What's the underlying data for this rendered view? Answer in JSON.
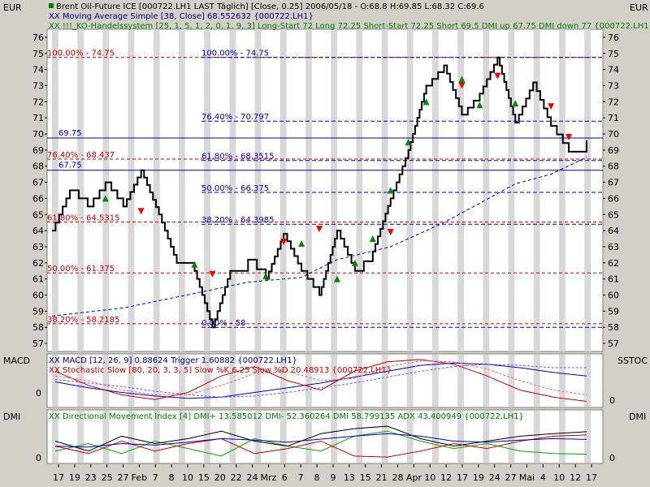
{
  "header": {
    "currency_left": "EUR",
    "currency_right": "EUR",
    "line1": "Brent Oil-Future  ICE [000722.LH1 LAST Täglich] [Close, 0.25] 2006/05/18 - O:68.8 H:69.85 L:68.32 C:69.6",
    "line2": "XX Moving Average Simple [38, Close] 68.552632 {000722.LH1}",
    "line3": "XX !!!_KO-Handelssystem [25, 1, 5, 1, 2, 0, 1, 9, 3] Long-Start 72 Long 72.25 Short-Start 72.25 Short 69.5 DMI up 67.75 DMI down 77 {000722.LH1}"
  },
  "indicators": {
    "macd_name": "MACD",
    "macd_line1": "XX MACD [12, 26, 9] 0.88624 Trigger 1.60882 {000722.LH1}",
    "macd_line2": "XX Stochastic Slow [80, 20, 3, 3, 5] Slow %K 6.25 Slow %D 20.48913 {000722.LH1}",
    "sstoc_name": "SSTOC",
    "macd_zero_left": "0",
    "sstoc_zero_right": "0",
    "dmi_name_left": "DMI",
    "dmi_name_right": "DMI",
    "dmi_line1": "XX Directional Movement Index [4] DMI+ 13.585012 DMI- 52.360264 DMI 58.799135 ADX 43.400949 {000722.LH1}",
    "dmi_zero_left": "0",
    "dmi_zero_right": "0"
  },
  "fib_labels_left": [
    {
      "text": "100.00% - 74.75",
      "y": 74.75
    },
    {
      "text": "76.40% - 68.437",
      "y": 68.437
    },
    {
      "text": "61.80% - 64.5315",
      "y": 64.5315
    },
    {
      "text": "50.00% - 61.375",
      "y": 61.375
    },
    {
      "text": "38.20% - 58.2185",
      "y": 58.2185
    }
  ],
  "fib_labels_mid": [
    {
      "text": "100.00% - 74.75",
      "y": 74.75
    },
    {
      "text": "76.40% - 70.797",
      "y": 70.797
    },
    {
      "text": "61.80% - 68.3515",
      "y": 68.3515
    },
    {
      "text": "50.00% - 66.375",
      "y": 66.375
    },
    {
      "text": "38.20% - 64.3985",
      "y": 64.3985
    },
    {
      "text": "0.00% - 58",
      "y": 58
    }
  ],
  "level_labels": [
    {
      "text": "69.75",
      "y": 69.75
    },
    {
      "text": "67.75",
      "y": 67.75
    }
  ],
  "x_labels": [
    "17",
    "19",
    "23",
    "25",
    "27",
    "Feb",
    "7",
    "8",
    "10",
    "15",
    "20",
    "22",
    "24",
    "Mrz",
    "6",
    "7",
    "8",
    "9",
    "13",
    "15",
    "21",
    "28",
    "Apr",
    "10",
    "12",
    "17",
    "19",
    "24",
    "27",
    "Mai",
    "4",
    "10",
    "12",
    "17"
  ],
  "colors": {
    "background": "#ffffff",
    "stripe": "#d8d8d8",
    "panel_bg": "#d4d0c8",
    "brick": "#000000",
    "support_blue": "#0000aa",
    "fib_red": "#cc0000",
    "ma_blue": "#0000cc",
    "up_green": "#008800",
    "down_red": "#ee0000",
    "header_text_blue": "#000080",
    "header_text_green": "#008000",
    "header_text_red": "#cc0000"
  },
  "chart_data": [
    {
      "type": "line",
      "title": "Brent Oil-Future  ICE [000722.LH1 LAST Täglich] [Close, 0.25] 2006/05/18",
      "ylabel": "EUR",
      "ylim": [
        56.5,
        76.5
      ],
      "yticks": [
        57,
        58,
        59,
        60,
        61,
        62,
        63,
        64,
        65,
        66,
        67,
        68,
        69,
        70,
        71,
        72,
        73,
        74,
        75,
        76
      ],
      "x_categories": [
        "17",
        "19",
        "23",
        "25",
        "27",
        "Feb",
        "7",
        "8",
        "10",
        "15",
        "20",
        "22",
        "24",
        "Mrz",
        "6",
        "7",
        "8",
        "9",
        "13",
        "15",
        "21",
        "28",
        "Apr",
        "10",
        "12",
        "17",
        "19",
        "24",
        "27",
        "Mai",
        "4",
        "10",
        "12",
        "17"
      ],
      "series": [
        {
          "name": "Brent Oil-Future",
          "kind": "renko-close",
          "points": [
            [
              0,
              64
            ],
            [
              1,
              66.5
            ],
            [
              2,
              65.5
            ],
            [
              3,
              67
            ],
            [
              4,
              65.5
            ],
            [
              5,
              67.75
            ],
            [
              6,
              65
            ],
            [
              7,
              62
            ],
            [
              8,
              61.5
            ],
            [
              9,
              58
            ],
            [
              10,
              61.5
            ],
            [
              11,
              62.2
            ],
            [
              12,
              61
            ],
            [
              13,
              63.8
            ],
            [
              14,
              61.5
            ],
            [
              15,
              60
            ],
            [
              16,
              64
            ],
            [
              17,
              61.5
            ],
            [
              18,
              62.7
            ],
            [
              19,
              66
            ],
            [
              20,
              69
            ],
            [
              21,
              73
            ],
            [
              22,
              74.25
            ],
            [
              23,
              71.2
            ],
            [
              24,
              72.5
            ],
            [
              25,
              74.75
            ],
            [
              26,
              70.7
            ],
            [
              27,
              73.2
            ],
            [
              28,
              70.5
            ],
            [
              29,
              68.9
            ],
            [
              30,
              69.6
            ]
          ]
        },
        {
          "name": "Moving Average Simple [38, Close]",
          "points": [
            [
              0,
              58.7
            ],
            [
              4,
              59.2
            ],
            [
              8,
              60.1
            ],
            [
              11,
              60.8
            ],
            [
              14,
              61.1
            ],
            [
              16,
              62.2
            ],
            [
              19,
              63.0
            ],
            [
              22,
              64.5
            ],
            [
              24,
              65.7
            ],
            [
              26,
              66.9
            ],
            [
              28,
              67.5
            ],
            [
              30,
              68.55
            ]
          ]
        }
      ],
      "fib_levels_left": [
        74.75,
        68.437,
        64.5315,
        61.375,
        58.2185
      ],
      "fib_levels_mid": [
        74.75,
        70.797,
        68.3515,
        66.375,
        64.3985,
        58
      ],
      "support_lines": [
        69.75,
        67.75
      ],
      "long_signals": [
        [
          3,
          66.0
        ],
        [
          8,
          61.9
        ],
        [
          12,
          61.2
        ],
        [
          14,
          63.2
        ],
        [
          16,
          61.0
        ],
        [
          17,
          62.0
        ],
        [
          18,
          63.5
        ],
        [
          19,
          66.5
        ],
        [
          20,
          69.5
        ],
        [
          21,
          72.0
        ],
        [
          23,
          73.4
        ],
        [
          24,
          71.8
        ],
        [
          26,
          71.9
        ]
      ],
      "short_signals": [
        [
          5,
          65.2
        ],
        [
          9,
          61.3
        ],
        [
          13,
          63.3
        ],
        [
          15,
          64.1
        ],
        [
          19,
          63.9
        ],
        [
          23,
          73.0
        ],
        [
          25,
          73.6
        ],
        [
          28,
          71.7
        ],
        [
          29,
          69.8
        ]
      ]
    },
    {
      "type": "line",
      "title": "MACD [12, 26, 9]",
      "series": [
        {
          "name": "MACD",
          "values": [
            0.4,
            -0.1,
            -0.5,
            -0.8,
            -1.0,
            -0.9,
            -0.5,
            -0.1,
            0.3,
            0.8,
            1.3,
            1.8,
            2.0,
            1.9,
            1.6,
            1.2,
            0.9
          ]
        },
        {
          "name": "Trigger",
          "values": [
            0.6,
            0.3,
            0.0,
            -0.4,
            -0.7,
            -0.9,
            -0.8,
            -0.5,
            -0.1,
            0.3,
            0.8,
            1.3,
            1.7,
            1.9,
            1.8,
            1.6,
            1.6
          ]
        },
        {
          "name": "Slow %K",
          "values": [
            70,
            40,
            20,
            10,
            25,
            60,
            80,
            50,
            30,
            70,
            90,
            95,
            85,
            60,
            30,
            15,
            6
          ]
        },
        {
          "name": "Slow %D",
          "values": [
            60,
            50,
            30,
            20,
            20,
            40,
            65,
            70,
            50,
            55,
            80,
            92,
            90,
            75,
            50,
            30,
            20
          ]
        }
      ]
    },
    {
      "type": "line",
      "title": "Directional Movement Index [4]",
      "series": [
        {
          "name": "DMI+",
          "values": [
            20,
            35,
            15,
            40,
            25,
            10,
            45,
            30,
            20,
            50,
            60,
            40,
            25,
            35,
            20,
            15,
            13.6
          ]
        },
        {
          "name": "DMI-",
          "values": [
            30,
            15,
            40,
            20,
            35,
            45,
            15,
            25,
            40,
            10,
            8,
            20,
            35,
            25,
            40,
            50,
            52.4
          ]
        },
        {
          "name": "DMI",
          "values": [
            40,
            20,
            50,
            35,
            45,
            60,
            40,
            30,
            55,
            65,
            70,
            45,
            30,
            40,
            50,
            55,
            58.8
          ]
        },
        {
          "name": "ADX",
          "values": [
            30,
            28,
            35,
            32,
            38,
            45,
            42,
            38,
            44,
            50,
            55,
            50,
            40,
            38,
            42,
            45,
            43.4
          ]
        }
      ]
    }
  ]
}
